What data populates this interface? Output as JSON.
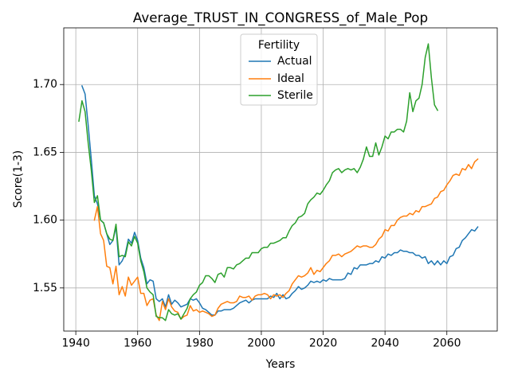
{
  "chart_data": {
    "type": "line",
    "title": "Average_TRUST_IN_CONGRESS_of_Male_Pop",
    "xlabel": "Years",
    "ylabel": "Score(1-3)",
    "xlim": [
      1936.1,
      2076.3
    ],
    "ylim": [
      1.5182,
      1.7418
    ],
    "xticks": [
      1940,
      1960,
      1980,
      2000,
      2020,
      2040,
      2060
    ],
    "xtick_labels": [
      "1940",
      "1960",
      "1980",
      "2000",
      "2020",
      "2040",
      "2060"
    ],
    "yticks": [
      1.55,
      1.6,
      1.65,
      1.7
    ],
    "ytick_labels": [
      "1.55",
      "1.60",
      "1.65",
      "1.70"
    ],
    "grid": true,
    "legend": {
      "title": "Fertility",
      "placement": "upper-center"
    },
    "series": [
      {
        "name": "Actual",
        "color": "#1f77b4",
        "x": [
          1942,
          1943,
          1944,
          1945,
          1946,
          1947,
          1948,
          1949,
          1950,
          1951,
          1952,
          1953,
          1954,
          1955,
          1956,
          1957,
          1958,
          1959,
          1960,
          1961,
          1962,
          1963,
          1964,
          1965,
          1966,
          1967,
          1968,
          1969,
          1970,
          1971,
          1972,
          1973,
          1974,
          1975,
          1976,
          1977,
          1978,
          1979,
          1980,
          1981,
          1982,
          1983,
          1984,
          1985,
          1986,
          1987,
          1988,
          1989,
          1990,
          1991,
          1992,
          1993,
          1994,
          1995,
          1996,
          1997,
          1998,
          1999,
          2000,
          2001,
          2002,
          2003,
          2004,
          2005,
          2006,
          2007,
          2008,
          2009,
          2010,
          2011,
          2012,
          2013,
          2014,
          2015,
          2016,
          2017,
          2018,
          2019,
          2020,
          2021,
          2022,
          2023,
          2024,
          2025,
          2026,
          2027,
          2028,
          2029,
          2030,
          2031,
          2032,
          2033,
          2034,
          2035,
          2036,
          2037,
          2038,
          2039,
          2040,
          2041,
          2042,
          2043,
          2044,
          2045,
          2046,
          2047,
          2048,
          2049,
          2050,
          2051,
          2052,
          2053,
          2054,
          2055,
          2056,
          2057,
          2058,
          2059,
          2060,
          2061,
          2062,
          2063,
          2064,
          2065,
          2066,
          2067,
          2068,
          2069,
          2070
        ],
        "values": [
          1.699,
          1.693,
          1.67,
          1.645,
          1.618,
          1.612,
          1.6,
          1.598,
          1.59,
          1.582,
          1.585,
          1.595,
          1.567,
          1.57,
          1.575,
          1.586,
          1.583,
          1.591,
          1.585,
          1.572,
          1.565,
          1.553,
          1.556,
          1.555,
          1.542,
          1.54,
          1.542,
          1.536,
          1.545,
          1.538,
          1.541,
          1.539,
          1.536,
          1.537,
          1.538,
          1.542,
          1.541,
          1.542,
          1.539,
          1.535,
          1.534,
          1.532,
          1.53,
          1.53,
          1.533,
          1.533,
          1.534,
          1.534,
          1.534,
          1.535,
          1.537,
          1.539,
          1.54,
          1.541,
          1.539,
          1.541,
          1.542,
          1.542,
          1.542,
          1.542,
          1.542,
          1.544,
          1.543,
          1.546,
          1.542,
          1.545,
          1.542,
          1.543,
          1.546,
          1.548,
          1.551,
          1.549,
          1.55,
          1.552,
          1.555,
          1.554,
          1.555,
          1.554,
          1.556,
          1.555,
          1.557,
          1.556,
          1.556,
          1.556,
          1.556,
          1.557,
          1.561,
          1.56,
          1.565,
          1.564,
          1.567,
          1.567,
          1.567,
          1.568,
          1.568,
          1.57,
          1.569,
          1.573,
          1.572,
          1.575,
          1.574,
          1.576,
          1.576,
          1.578,
          1.577,
          1.577,
          1.576,
          1.576,
          1.574,
          1.574,
          1.572,
          1.573,
          1.568,
          1.57,
          1.567,
          1.57,
          1.567,
          1.57,
          1.568,
          1.573,
          1.574,
          1.579,
          1.58,
          1.585,
          1.587,
          1.59,
          1.593,
          1.592,
          1.595
        ]
      },
      {
        "name": "Ideal",
        "color": "#ff7f0e",
        "x": [
          1946,
          1947,
          1948,
          1949,
          1950,
          1951,
          1952,
          1953,
          1954,
          1955,
          1956,
          1957,
          1958,
          1959,
          1960,
          1961,
          1962,
          1963,
          1964,
          1965,
          1966,
          1967,
          1968,
          1969,
          1970,
          1971,
          1972,
          1973,
          1974,
          1975,
          1976,
          1977,
          1978,
          1979,
          1980,
          1981,
          1982,
          1983,
          1984,
          1985,
          1986,
          1987,
          1988,
          1989,
          1990,
          1991,
          1992,
          1993,
          1994,
          1995,
          1996,
          1997,
          1998,
          1999,
          2000,
          2001,
          2002,
          2003,
          2004,
          2005,
          2006,
          2007,
          2008,
          2009,
          2010,
          2011,
          2012,
          2013,
          2014,
          2015,
          2016,
          2017,
          2018,
          2019,
          2020,
          2021,
          2022,
          2023,
          2024,
          2025,
          2026,
          2027,
          2028,
          2029,
          2030,
          2031,
          2032,
          2033,
          2034,
          2035,
          2036,
          2037,
          2038,
          2039,
          2040,
          2041,
          2042,
          2043,
          2044,
          2045,
          2046,
          2047,
          2048,
          2049,
          2050,
          2051,
          2052,
          2053,
          2054,
          2055,
          2056,
          2057,
          2058,
          2059,
          2060,
          2061,
          2062,
          2063,
          2064,
          2065,
          2066,
          2067,
          2068,
          2069,
          2070
        ],
        "values": [
          1.6,
          1.61,
          1.59,
          1.585,
          1.566,
          1.565,
          1.553,
          1.566,
          1.545,
          1.551,
          1.544,
          1.558,
          1.552,
          1.555,
          1.558,
          1.546,
          1.546,
          1.537,
          1.541,
          1.542,
          1.53,
          1.526,
          1.54,
          1.534,
          1.542,
          1.536,
          1.533,
          1.532,
          1.527,
          1.529,
          1.53,
          1.537,
          1.533,
          1.534,
          1.532,
          1.533,
          1.532,
          1.531,
          1.529,
          1.53,
          1.535,
          1.538,
          1.539,
          1.54,
          1.539,
          1.539,
          1.54,
          1.544,
          1.543,
          1.543,
          1.544,
          1.541,
          1.544,
          1.545,
          1.545,
          1.546,
          1.545,
          1.542,
          1.545,
          1.544,
          1.545,
          1.543,
          1.546,
          1.548,
          1.553,
          1.556,
          1.559,
          1.558,
          1.559,
          1.561,
          1.565,
          1.56,
          1.563,
          1.562,
          1.565,
          1.568,
          1.57,
          1.574,
          1.574,
          1.575,
          1.573,
          1.575,
          1.576,
          1.577,
          1.579,
          1.581,
          1.58,
          1.581,
          1.581,
          1.58,
          1.58,
          1.582,
          1.586,
          1.588,
          1.593,
          1.592,
          1.596,
          1.596,
          1.6,
          1.602,
          1.603,
          1.603,
          1.605,
          1.604,
          1.607,
          1.606,
          1.61,
          1.61,
          1.611,
          1.612,
          1.616,
          1.617,
          1.621,
          1.622,
          1.626,
          1.629,
          1.633,
          1.634,
          1.633,
          1.638,
          1.637,
          1.641,
          1.638,
          1.643,
          1.645
        ]
      },
      {
        "name": "Sterile",
        "color": "#2ca02c",
        "x": [
          1941,
          1942,
          1943,
          1944,
          1945,
          1946,
          1947,
          1948,
          1949,
          1950,
          1951,
          1952,
          1953,
          1954,
          1955,
          1956,
          1957,
          1958,
          1959,
          1960,
          1961,
          1962,
          1963,
          1964,
          1965,
          1966,
          1967,
          1968,
          1969,
          1970,
          1971,
          1972,
          1973,
          1974,
          1975,
          1976,
          1977,
          1978,
          1979,
          1980,
          1981,
          1982,
          1983,
          1984,
          1985,
          1986,
          1987,
          1988,
          1989,
          1990,
          1991,
          1992,
          1993,
          1994,
          1995,
          1996,
          1997,
          1998,
          1999,
          2000,
          2001,
          2002,
          2003,
          2004,
          2005,
          2006,
          2007,
          2008,
          2009,
          2010,
          2011,
          2012,
          2013,
          2014,
          2015,
          2016,
          2017,
          2018,
          2019,
          2020,
          2021,
          2022,
          2023,
          2024,
          2025,
          2026,
          2027,
          2028,
          2029,
          2030,
          2031,
          2032,
          2033,
          2034,
          2035,
          2036,
          2037,
          2038,
          2039,
          2040,
          2041,
          2042,
          2043,
          2044,
          2045,
          2046,
          2047,
          2048,
          2049,
          2050,
          2051,
          2052,
          2053,
          2054,
          2055,
          2056,
          2057
        ],
        "values": [
          1.673,
          1.688,
          1.68,
          1.657,
          1.637,
          1.613,
          1.618,
          1.6,
          1.598,
          1.59,
          1.586,
          1.585,
          1.597,
          1.573,
          1.574,
          1.573,
          1.584,
          1.581,
          1.588,
          1.583,
          1.57,
          1.562,
          1.55,
          1.547,
          1.545,
          1.529,
          1.528,
          1.528,
          1.526,
          1.534,
          1.531,
          1.53,
          1.531,
          1.527,
          1.531,
          1.535,
          1.542,
          1.545,
          1.547,
          1.552,
          1.554,
          1.559,
          1.559,
          1.557,
          1.554,
          1.56,
          1.561,
          1.558,
          1.565,
          1.565,
          1.564,
          1.567,
          1.568,
          1.57,
          1.572,
          1.572,
          1.576,
          1.576,
          1.576,
          1.579,
          1.58,
          1.58,
          1.583,
          1.583,
          1.584,
          1.585,
          1.587,
          1.587,
          1.592,
          1.596,
          1.598,
          1.602,
          1.603,
          1.605,
          1.612,
          1.615,
          1.617,
          1.62,
          1.619,
          1.622,
          1.626,
          1.629,
          1.635,
          1.637,
          1.638,
          1.635,
          1.637,
          1.638,
          1.637,
          1.638,
          1.635,
          1.639,
          1.645,
          1.654,
          1.647,
          1.647,
          1.657,
          1.648,
          1.654,
          1.662,
          1.66,
          1.665,
          1.665,
          1.667,
          1.667,
          1.665,
          1.673,
          1.694,
          1.68,
          1.688,
          1.69,
          1.7,
          1.72,
          1.73,
          1.705,
          1.685,
          1.681
        ]
      }
    ]
  }
}
